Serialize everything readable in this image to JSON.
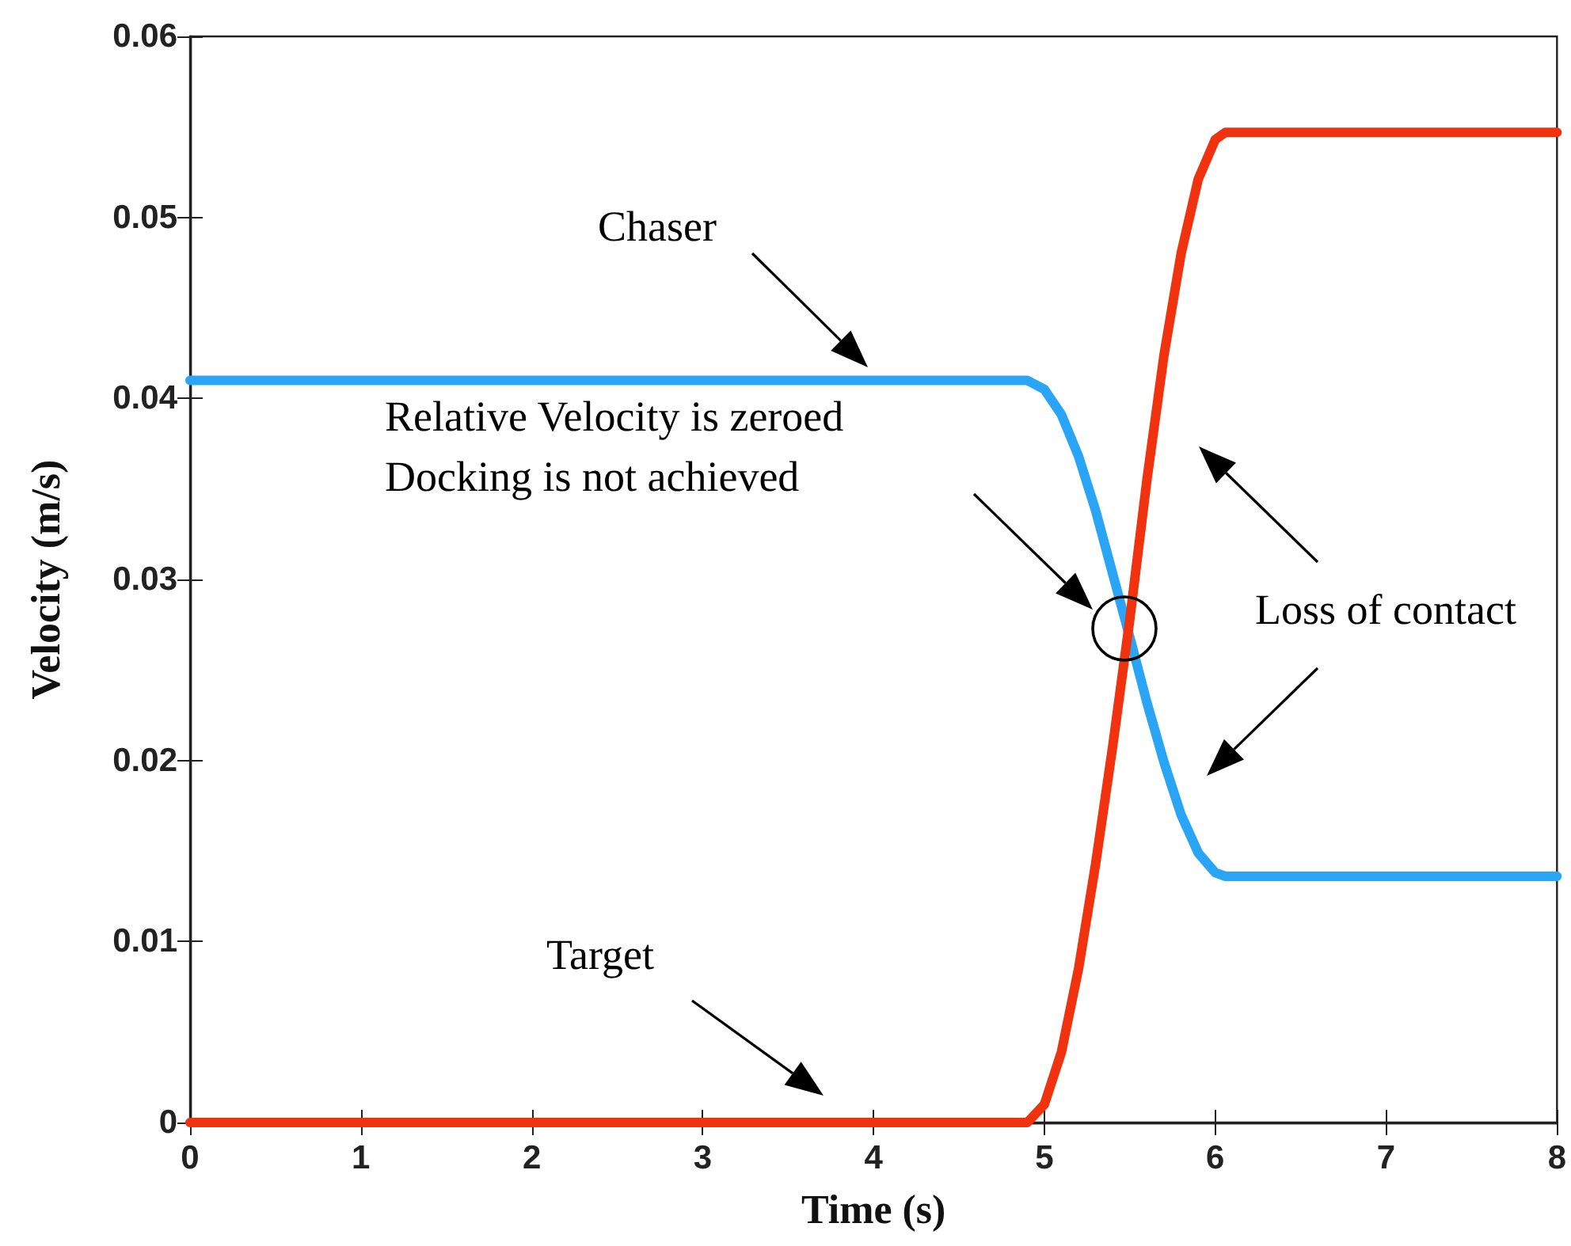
{
  "chart_data": {
    "type": "line",
    "xlabel": "Time (s)",
    "ylabel": "Velocity (m/s)",
    "xlim": [
      0,
      8
    ],
    "xticks": [
      0,
      1,
      2,
      3,
      4,
      5,
      6,
      7,
      8
    ],
    "ylim": [
      0,
      0.06
    ],
    "yticks": [
      0,
      0.01,
      0.02,
      0.03,
      0.04,
      0.05,
      0.06
    ],
    "grid": false,
    "marker": "none",
    "line_style": "solid",
    "series": [
      {
        "color": "#2aa5f5",
        "x": [
          0,
          4.9,
          5.0,
          5.1,
          5.2,
          5.3,
          5.4,
          5.5,
          5.6,
          5.7,
          5.8,
          5.9,
          6.0,
          6.06,
          8
        ],
        "values": [
          0.041,
          0.041,
          0.0405,
          0.0391,
          0.0368,
          0.0338,
          0.0303,
          0.0268,
          0.0232,
          0.0199,
          0.017,
          0.0149,
          0.0138,
          0.0136,
          0.0136
        ]
      },
      {
        "color": "#f0320f",
        "x": [
          0,
          4.9,
          5.0,
          5.1,
          5.2,
          5.3,
          5.4,
          5.5,
          5.6,
          5.7,
          5.8,
          5.9,
          6.0,
          6.06,
          8
        ],
        "values": [
          0,
          0,
          0.001,
          0.0039,
          0.0085,
          0.0143,
          0.0208,
          0.0278,
          0.0355,
          0.0424,
          0.048,
          0.0521,
          0.0543,
          0.0547,
          0.0547
        ]
      }
    ],
    "annotations": [
      "Chaser",
      "Relative Velocity is zeroed\nDocking is not achieved",
      "Target",
      "Loss of contact"
    ]
  }
}
